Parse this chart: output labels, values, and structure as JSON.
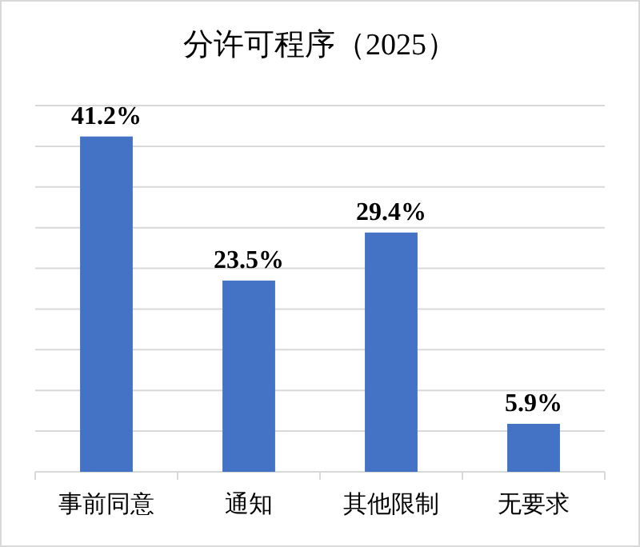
{
  "chart_data": {
    "type": "bar",
    "title": "分许可程序（2025）",
    "categories": [
      "事前同意",
      "通知",
      "其他限制",
      "无要求"
    ],
    "values": [
      41.2,
      23.5,
      29.4,
      5.9
    ],
    "value_labels": [
      "41.2%",
      "23.5%",
      "29.4%",
      "5.9%"
    ],
    "color": "#4472c4",
    "ylim": [
      0,
      45
    ],
    "yticks": [
      {
        "value": 0,
        "label": null
      },
      {
        "value": 5,
        "label": null
      },
      {
        "value": 10,
        "label": null
      },
      {
        "value": 15,
        "label": null
      },
      {
        "value": 20,
        "label": null
      },
      {
        "value": 25,
        "label": null
      },
      {
        "value": 30,
        "label": null
      },
      {
        "value": 35,
        "label": null
      },
      {
        "value": 40,
        "label": null
      },
      {
        "value": 45,
        "label": null
      }
    ],
    "tick_labels": "x",
    "grid": "y"
  }
}
